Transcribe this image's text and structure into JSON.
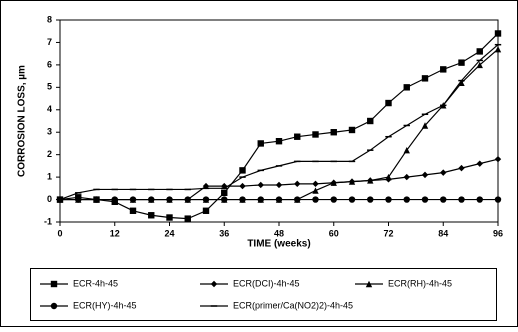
{
  "chart_data": {
    "type": "line",
    "x_label": "TIME (weeks)",
    "y_label": "CORROSION LOSS, µm",
    "x": [
      0,
      4,
      8,
      12,
      16,
      20,
      24,
      28,
      32,
      36,
      40,
      44,
      48,
      52,
      56,
      60,
      64,
      68,
      72,
      76,
      80,
      84,
      88,
      92,
      96
    ],
    "xlim": [
      0,
      96
    ],
    "xticks": [
      0,
      12,
      24,
      36,
      48,
      60,
      72,
      84,
      96
    ],
    "ylim": [
      -1,
      8
    ],
    "yticks": [
      -1,
      0,
      1,
      2,
      3,
      4,
      5,
      6,
      7,
      8
    ],
    "grid": false,
    "series": [
      {
        "name": "ECR-4h-45",
        "color": "#000000",
        "marker": "square",
        "values": [
          0,
          0.1,
          0,
          -0.1,
          -0.5,
          -0.7,
          -0.8,
          -0.85,
          -0.5,
          0.3,
          1.3,
          2.5,
          2.6,
          2.8,
          2.9,
          3.0,
          3.1,
          3.5,
          4.3,
          5.0,
          5.4,
          5.8,
          6.1,
          6.6,
          7.4
        ]
      },
      {
        "name": "ECR(DCI)-4h-45",
        "color": "#000000",
        "marker": "diamond",
        "values": [
          0,
          0,
          0,
          0,
          0,
          0,
          0,
          0,
          0.6,
          0.6,
          0.6,
          0.65,
          0.65,
          0.7,
          0.7,
          0.75,
          0.8,
          0.85,
          0.9,
          1.0,
          1.1,
          1.2,
          1.4,
          1.6,
          1.8
        ]
      },
      {
        "name": "ECR(RH)-4h-45",
        "color": "#000000",
        "marker": "triangle",
        "values": [
          0,
          0,
          0,
          0,
          0,
          0,
          0,
          0,
          0,
          0,
          0,
          0,
          0,
          0,
          0.4,
          0.75,
          0.8,
          0.85,
          1.0,
          2.2,
          3.3,
          4.2,
          5.2,
          6.0,
          6.7
        ]
      },
      {
        "name": "ECR(HY)-4h-45",
        "color": "#000000",
        "marker": "circle",
        "values": [
          0,
          0,
          0,
          0,
          0,
          0,
          0,
          0,
          0,
          0,
          0,
          0,
          0,
          0,
          0,
          0,
          0,
          0,
          0,
          0,
          0,
          0,
          0,
          0,
          0
        ]
      },
      {
        "name": "ECR(primer/Ca(NO2)2)-4h-45",
        "color": "#000000",
        "marker": "dash",
        "values": [
          0,
          0.3,
          0.45,
          0.45,
          0.45,
          0.45,
          0.45,
          0.45,
          0.5,
          0.5,
          1.0,
          1.3,
          1.5,
          1.7,
          1.7,
          1.7,
          1.7,
          2.2,
          2.8,
          3.3,
          3.8,
          4.2,
          5.3,
          6.2,
          6.9
        ]
      }
    ]
  }
}
